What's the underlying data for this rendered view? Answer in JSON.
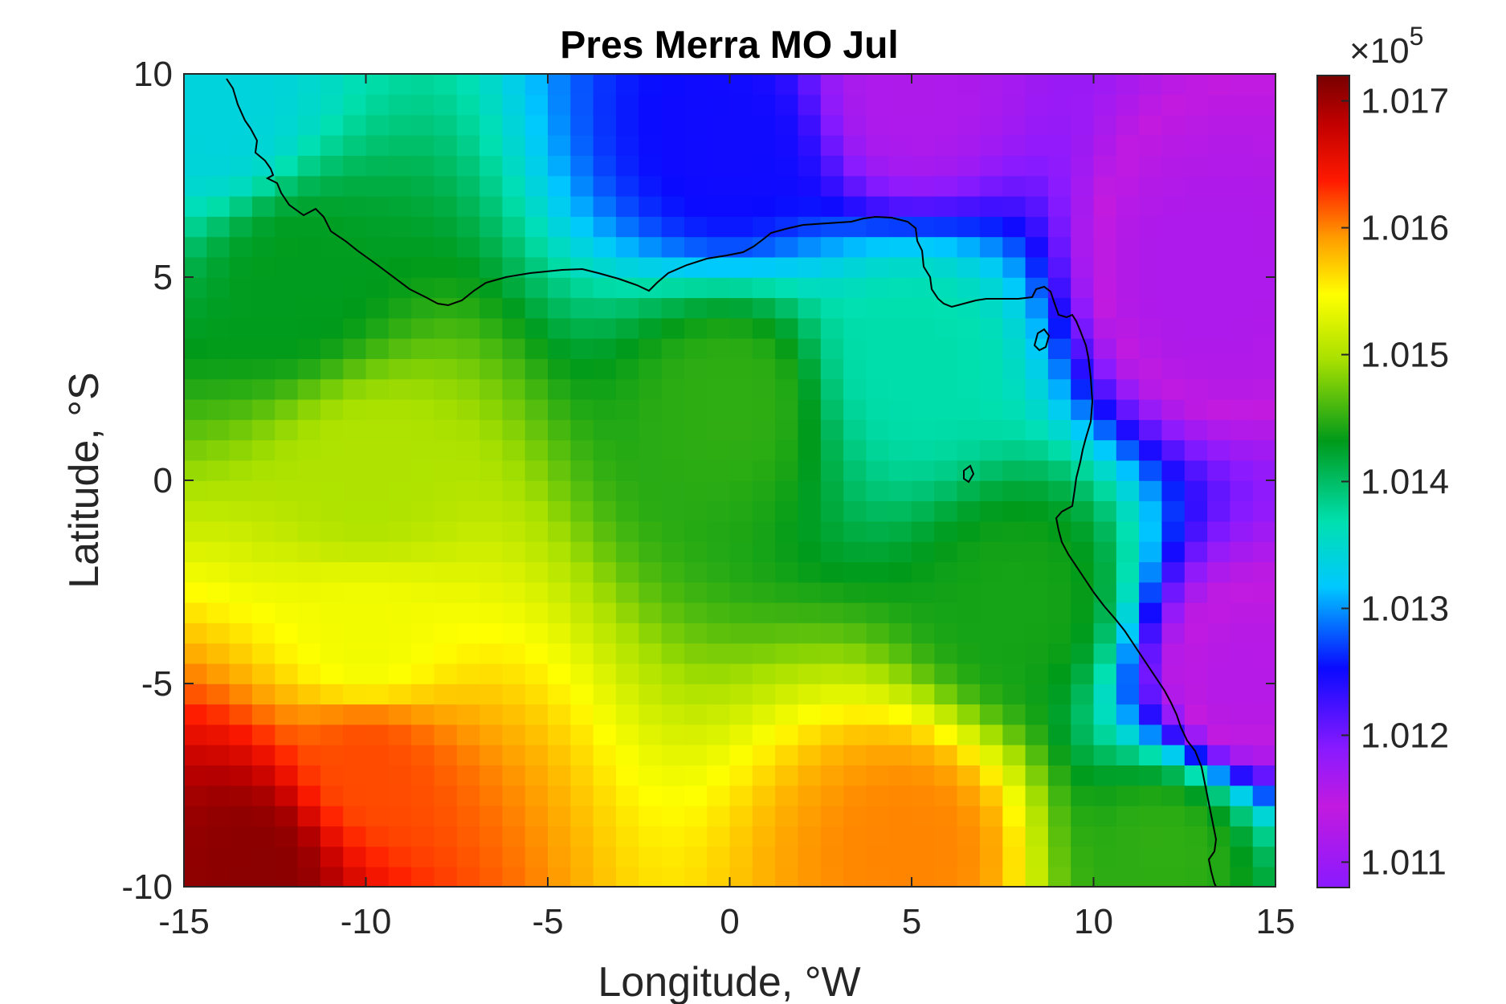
{
  "chart_data": {
    "type": "heatmap",
    "title": "Pres Merra MO Jul",
    "xlabel": "Longitude, °W",
    "ylabel": "Latitude, °S",
    "xlim": [
      -15,
      15
    ],
    "ylim": [
      -10,
      10
    ],
    "xticks": [
      -15,
      -10,
      -5,
      0,
      5,
      10,
      15
    ],
    "yticks": [
      -10,
      -5,
      0,
      5,
      10
    ],
    "colorbar": {
      "exponent_label": "×10",
      "exponent_power": "5",
      "clim": [
        1.0108,
        1.0172
      ],
      "ticks": [
        1.011,
        1.012,
        1.013,
        1.014,
        1.015,
        1.016,
        1.017
      ],
      "tick_labels": [
        "1.011",
        "1.012",
        "1.013",
        "1.014",
        "1.015",
        "1.016",
        "1.017"
      ],
      "colormap": "hsv-reversed: violet → blue → cyan → green → yellow → red → dark red"
    },
    "grid": false,
    "field_description": "Surface pressure (×10^5 Pa), July climatology; high pressure in south-west, low along north and east edges",
    "sample_values": [
      {
        "lon": -13,
        "lat": -9.5,
        "value": 1.0171
      },
      {
        "lon": -10,
        "lat": -7,
        "value": 1.0162
      },
      {
        "lon": -10,
        "lat": -4,
        "value": 1.0154
      },
      {
        "lon": -10,
        "lat": 0,
        "value": 1.015
      },
      {
        "lon": -12,
        "lat": 5,
        "value": 1.0143
      },
      {
        "lon": -14,
        "lat": 9,
        "value": 1.0134
      },
      {
        "lon": 0,
        "lat": 8,
        "value": 1.0125
      },
      {
        "lon": 5,
        "lat": 9.5,
        "value": 1.0116
      },
      {
        "lon": 13,
        "lat": 5,
        "value": 1.0112
      },
      {
        "lon": 14,
        "lat": -5,
        "value": 1.0113
      },
      {
        "lon": 8,
        "lat": -3,
        "value": 1.0144
      },
      {
        "lon": 5,
        "lat": 3,
        "value": 1.0137
      },
      {
        "lon": 0,
        "lat": 2,
        "value": 1.0145
      },
      {
        "lon": 12,
        "lat": -9,
        "value": 1.0145
      },
      {
        "lon": 5,
        "lat": -9,
        "value": 1.016
      }
    ]
  }
}
